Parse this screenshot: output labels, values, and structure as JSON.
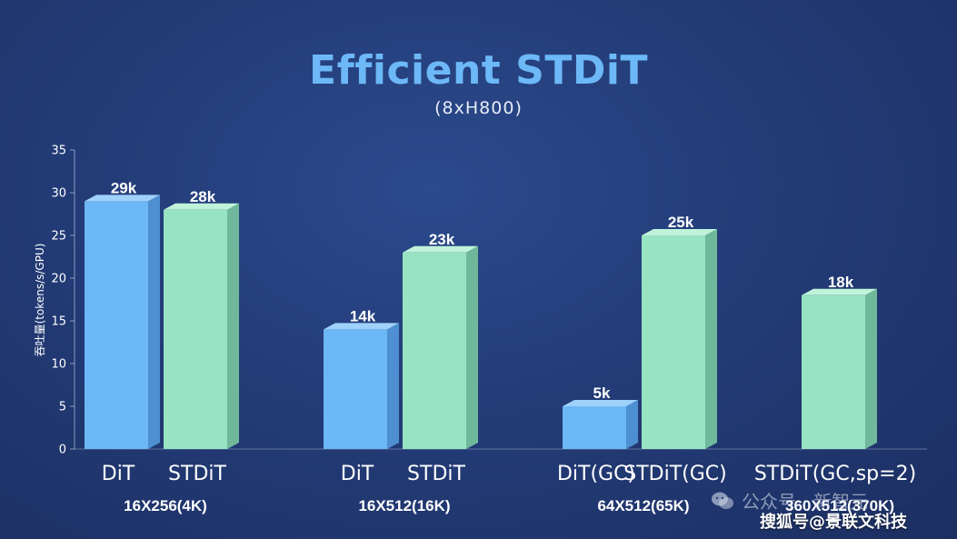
{
  "watermark": {
    "account": "公众号 · 新智元"
  },
  "source_tag": "搜狐号@景联文科技",
  "colors": {
    "dit": "#6cb7f6",
    "stdit": "#98e3c2",
    "title": "#6db8f7"
  },
  "chart_data": {
    "type": "bar",
    "title": "Efficient STDiT",
    "subtitle": "(8xH800)",
    "ylabel": "吞吐量(tokens/s/GPU)",
    "xlabel": "",
    "ylim": [
      0,
      35
    ],
    "yticks": [
      0,
      5,
      10,
      15,
      20,
      25,
      30,
      35
    ],
    "grid": false,
    "groups": [
      {
        "label": "16X256(4K)",
        "bars": [
          {
            "label": "DiT",
            "value": 29,
            "value_label": "29k",
            "series": "dit"
          },
          {
            "label": "STDiT",
            "value": 28,
            "value_label": "28k",
            "series": "stdit"
          }
        ]
      },
      {
        "label": "16X512(16K)",
        "bars": [
          {
            "label": "DiT",
            "value": 14,
            "value_label": "14k",
            "series": "dit"
          },
          {
            "label": "STDiT",
            "value": 23,
            "value_label": "23k",
            "series": "stdit"
          }
        ]
      },
      {
        "label": "64X512(65K)",
        "bars": [
          {
            "label": "DiT(GC)",
            "value": 5,
            "value_label": "5k",
            "series": "dit"
          },
          {
            "label": "STDiT(GC)",
            "value": 25,
            "value_label": "25k",
            "series": "stdit"
          }
        ]
      },
      {
        "label": "360X512(370K)",
        "bars": [
          {
            "label": "STDiT(GC,sp=2)",
            "value": 18,
            "value_label": "18k",
            "series": "stdit"
          }
        ]
      }
    ]
  }
}
